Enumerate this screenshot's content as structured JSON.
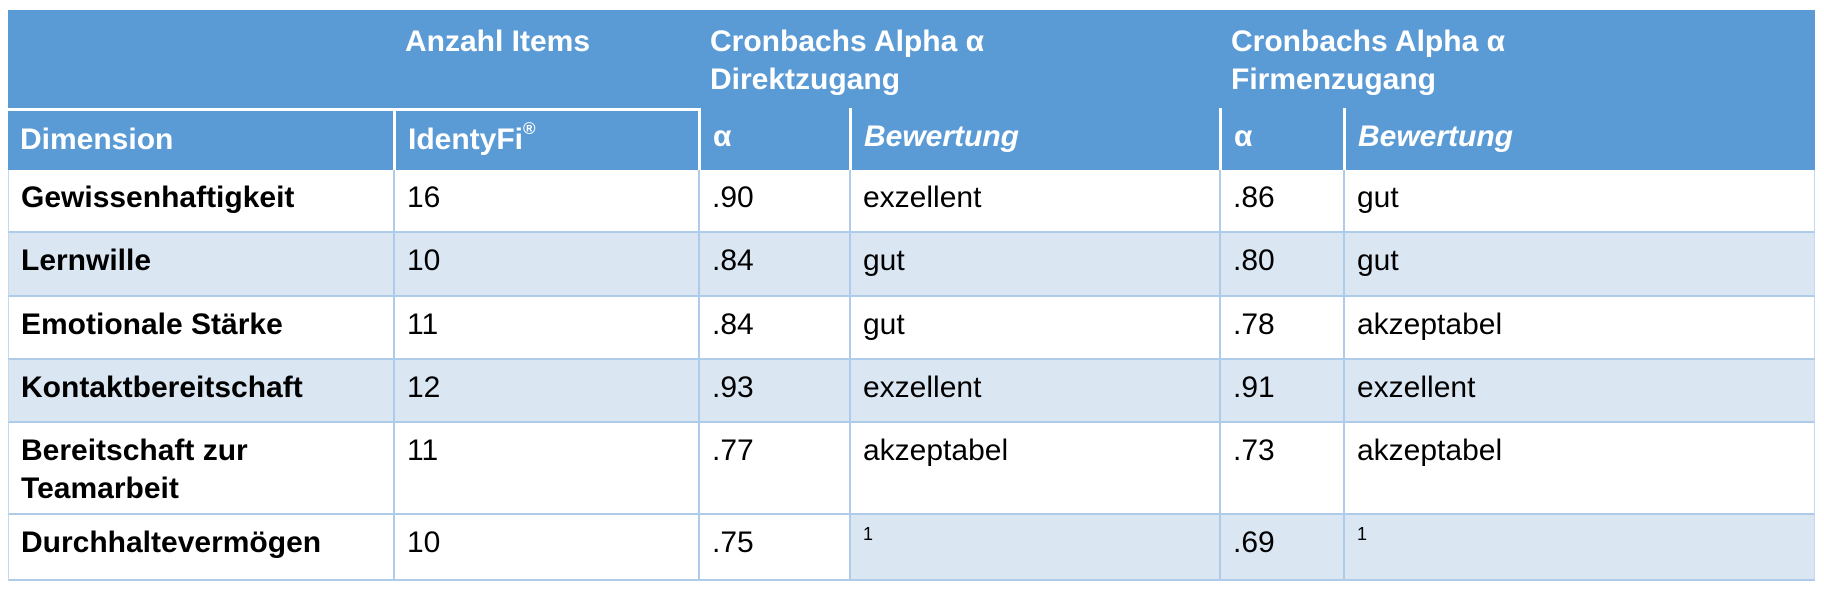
{
  "colors": {
    "header_bg": "#5b9bd5",
    "band_bg": "#dbe6f3",
    "grid_line": "#aecbe9",
    "header_divider": "#ffffff",
    "header_text": "#ffffff",
    "body_text": "#000000"
  },
  "table": {
    "header_row1": {
      "empty": "",
      "anzahl_items": "Anzahl Items",
      "cronbach_direkt_line1": "Cronbachs Alpha α",
      "cronbach_direkt_line2": "Direktzugang",
      "cronbach_firmen_line1": "Cronbachs Alpha α",
      "cronbach_firmen_line2": "Firmenzugang"
    },
    "header_row2": {
      "dimension": "Dimension",
      "identyfi": "IdentyFi",
      "identyfi_sup": "®",
      "alpha_direkt": "α",
      "bewertung_direkt": "Bewertung",
      "alpha_firmen": "α",
      "bewertung_firmen": "Bewertung"
    },
    "rows": [
      {
        "dimension": "Gewissenhaftigkeit",
        "items": "16",
        "alpha_direkt": ".90",
        "bewertung_direkt": "exzellent",
        "alpha_firmen": ".86",
        "bewertung_firmen": "gut"
      },
      {
        "dimension": "Lernwille",
        "items": "10",
        "alpha_direkt": ".84",
        "bewertung_direkt": "gut",
        "alpha_firmen": ".80",
        "bewertung_firmen": "gut"
      },
      {
        "dimension": "Emotionale Stärke",
        "items": "11",
        "alpha_direkt": ".84",
        "bewertung_direkt": "gut",
        "alpha_firmen": ".78",
        "bewertung_firmen": "akzeptabel"
      },
      {
        "dimension": "Kontaktbereitschaft",
        "items": "12",
        "alpha_direkt": ".93",
        "bewertung_direkt": "exzellent",
        "alpha_firmen": ".91",
        "bewertung_firmen": "exzellent"
      },
      {
        "dimension": "Bereitschaft zur Teamarbeit",
        "items": "11",
        "alpha_direkt": ".77",
        "bewertung_direkt": "akzeptabel",
        "alpha_firmen": ".73",
        "bewertung_firmen": "akzeptabel"
      },
      {
        "dimension": "Durchhaltevermögen",
        "items": "10",
        "alpha_direkt": ".75",
        "bewertung_direkt": "",
        "bewertung_direkt_sup": "1",
        "alpha_firmen": ".69",
        "bewertung_firmen": "",
        "bewertung_firmen_sup": "1"
      }
    ]
  }
}
